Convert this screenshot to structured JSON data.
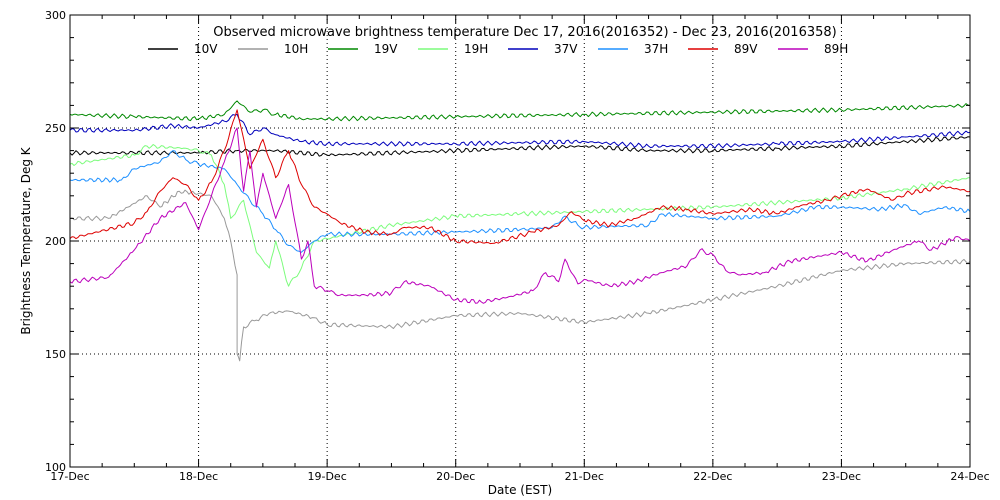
{
  "chart_data": {
    "type": "line",
    "title": "Observed microwave brightness temperature Dec 17, 2016(2016352) - Dec 23, 2016(2016358)",
    "xlabel": "Date (EST)",
    "ylabel": "Brightness Temperature, Deg K",
    "x_tick_labels": [
      "17-Dec",
      "18-Dec",
      "19-Dec",
      "20-Dec",
      "21-Dec",
      "22-Dec",
      "23-Dec",
      "24-Dec"
    ],
    "y_tick_labels": [
      "100",
      "150",
      "200",
      "250",
      "300"
    ],
    "xlim": [
      0,
      7
    ],
    "ylim": [
      100,
      300
    ],
    "x_unit_note": "days after 17-Dec 00:00 EST",
    "grid": "dotted at major ticks",
    "legend_position": "top",
    "series": [
      {
        "name": "10V",
        "color": "#000000",
        "points": [
          [
            0,
            239
          ],
          [
            0.5,
            239
          ],
          [
            1,
            239
          ],
          [
            1.3,
            240
          ],
          [
            1.6,
            240
          ],
          [
            2,
            238
          ],
          [
            3,
            240
          ],
          [
            4,
            242
          ],
          [
            4.5,
            240
          ],
          [
            5,
            240
          ],
          [
            5.5,
            241
          ],
          [
            6,
            242
          ],
          [
            6.5,
            244
          ],
          [
            7,
            246
          ]
        ]
      },
      {
        "name": "10H",
        "color": "#999999",
        "points": [
          [
            0,
            210
          ],
          [
            0.3,
            210
          ],
          [
            0.45,
            215
          ],
          [
            0.6,
            220
          ],
          [
            0.7,
            215
          ],
          [
            0.85,
            222
          ],
          [
            1,
            221
          ],
          [
            1.1,
            220
          ],
          [
            1.2,
            210
          ],
          [
            1.25,
            200
          ],
          [
            1.3,
            185
          ],
          [
            1.3,
            150
          ],
          [
            1.32,
            147
          ],
          [
            1.35,
            162
          ],
          [
            1.45,
            165
          ],
          [
            1.55,
            168
          ],
          [
            1.7,
            169
          ],
          [
            1.9,
            166
          ],
          [
            2,
            163
          ],
          [
            2.5,
            162
          ],
          [
            3,
            167
          ],
          [
            3.5,
            168
          ],
          [
            4,
            164
          ],
          [
            4.5,
            168
          ],
          [
            5,
            174
          ],
          [
            5.5,
            180
          ],
          [
            6,
            187
          ],
          [
            6.5,
            190
          ],
          [
            7,
            191
          ]
        ]
      },
      {
        "name": "19V",
        "color": "#008800",
        "points": [
          [
            0,
            256
          ],
          [
            0.5,
            255
          ],
          [
            1,
            254
          ],
          [
            1.2,
            256
          ],
          [
            1.3,
            262
          ],
          [
            1.4,
            257
          ],
          [
            1.5,
            258
          ],
          [
            1.6,
            256
          ],
          [
            1.8,
            254
          ],
          [
            2,
            254
          ],
          [
            3,
            255
          ],
          [
            4,
            256
          ],
          [
            5,
            257
          ],
          [
            6,
            258
          ],
          [
            7,
            260
          ]
        ]
      },
      {
        "name": "19H",
        "color": "#7CFC7C",
        "points": [
          [
            0,
            234
          ],
          [
            0.5,
            238
          ],
          [
            0.6,
            242
          ],
          [
            0.9,
            241
          ],
          [
            1,
            240
          ],
          [
            1.1,
            238
          ],
          [
            1.2,
            225
          ],
          [
            1.25,
            210
          ],
          [
            1.35,
            218
          ],
          [
            1.45,
            195
          ],
          [
            1.55,
            188
          ],
          [
            1.6,
            200
          ],
          [
            1.7,
            180
          ],
          [
            1.8,
            188
          ],
          [
            1.9,
            200
          ],
          [
            2,
            201
          ],
          [
            2.5,
            207
          ],
          [
            3,
            211
          ],
          [
            3.5,
            212
          ],
          [
            4,
            213
          ],
          [
            4.5,
            214
          ],
          [
            5,
            215
          ],
          [
            5.5,
            217
          ],
          [
            6,
            219
          ],
          [
            6.5,
            223
          ],
          [
            7,
            228
          ]
        ]
      },
      {
        "name": "37V",
        "color": "#0000BB",
        "points": [
          [
            0,
            249
          ],
          [
            0.5,
            249
          ],
          [
            0.8,
            251
          ],
          [
            1,
            250
          ],
          [
            1.2,
            253
          ],
          [
            1.3,
            256
          ],
          [
            1.4,
            247
          ],
          [
            1.5,
            250
          ],
          [
            1.6,
            247
          ],
          [
            1.8,
            244
          ],
          [
            2,
            243
          ],
          [
            3,
            243
          ],
          [
            4,
            244
          ],
          [
            4.5,
            242
          ],
          [
            5,
            242
          ],
          [
            5.5,
            243
          ],
          [
            6,
            244
          ],
          [
            6.5,
            246
          ],
          [
            7,
            248
          ]
        ]
      },
      {
        "name": "37H",
        "color": "#1E90FF",
        "points": [
          [
            0,
            227
          ],
          [
            0.4,
            227
          ],
          [
            0.5,
            232
          ],
          [
            0.7,
            235
          ],
          [
            0.8,
            240
          ],
          [
            0.9,
            236
          ],
          [
            1,
            234
          ],
          [
            1.2,
            232
          ],
          [
            1.3,
            225
          ],
          [
            1.4,
            218
          ],
          [
            1.5,
            212
          ],
          [
            1.6,
            205
          ],
          [
            1.7,
            198
          ],
          [
            1.8,
            195
          ],
          [
            1.9,
            200
          ],
          [
            2,
            203
          ],
          [
            2.5,
            203
          ],
          [
            3,
            204
          ],
          [
            3.5,
            205
          ],
          [
            3.75,
            206
          ],
          [
            3.85,
            211
          ],
          [
            3.95,
            207
          ],
          [
            4,
            206
          ],
          [
            4.5,
            207
          ],
          [
            4.6,
            212
          ],
          [
            5,
            210
          ],
          [
            5.5,
            211
          ],
          [
            5.8,
            215
          ],
          [
            6,
            215
          ],
          [
            6.3,
            214
          ],
          [
            6.5,
            216
          ],
          [
            6.6,
            212
          ],
          [
            6.8,
            215
          ],
          [
            7,
            213
          ]
        ]
      },
      {
        "name": "89V",
        "color": "#DD0000",
        "points": [
          [
            0,
            201
          ],
          [
            0.5,
            208
          ],
          [
            0.6,
            213
          ],
          [
            0.7,
            222
          ],
          [
            0.8,
            228
          ],
          [
            0.9,
            225
          ],
          [
            1,
            218
          ],
          [
            1.1,
            226
          ],
          [
            1.2,
            240
          ],
          [
            1.3,
            258
          ],
          [
            1.4,
            232
          ],
          [
            1.5,
            245
          ],
          [
            1.6,
            228
          ],
          [
            1.7,
            240
          ],
          [
            1.8,
            225
          ],
          [
            1.9,
            215
          ],
          [
            2,
            212
          ],
          [
            2.1,
            208
          ],
          [
            2.3,
            204
          ],
          [
            2.5,
            203
          ],
          [
            2.6,
            206
          ],
          [
            2.8,
            206
          ],
          [
            3,
            200
          ],
          [
            3.3,
            199
          ],
          [
            3.6,
            204
          ],
          [
            3.8,
            207
          ],
          [
            3.9,
            213
          ],
          [
            4,
            209
          ],
          [
            4.2,
            207
          ],
          [
            4.4,
            210
          ],
          [
            4.6,
            215
          ],
          [
            4.8,
            214
          ],
          [
            5,
            212
          ],
          [
            5.3,
            214
          ],
          [
            5.5,
            212
          ],
          [
            5.7,
            216
          ],
          [
            5.9,
            218
          ],
          [
            6,
            220
          ],
          [
            6.2,
            223
          ],
          [
            6.4,
            218
          ],
          [
            6.5,
            221
          ],
          [
            6.8,
            224
          ],
          [
            7,
            222
          ]
        ]
      },
      {
        "name": "89H",
        "color": "#BB00BB",
        "points": [
          [
            0,
            182
          ],
          [
            0.3,
            184
          ],
          [
            0.5,
            196
          ],
          [
            0.7,
            210
          ],
          [
            0.9,
            217
          ],
          [
            1,
            205
          ],
          [
            1.1,
            220
          ],
          [
            1.2,
            235
          ],
          [
            1.3,
            250
          ],
          [
            1.35,
            222
          ],
          [
            1.4,
            240
          ],
          [
            1.45,
            215
          ],
          [
            1.5,
            230
          ],
          [
            1.6,
            210
          ],
          [
            1.7,
            225
          ],
          [
            1.8,
            192
          ],
          [
            1.85,
            200
          ],
          [
            1.9,
            180
          ],
          [
            2,
            178
          ],
          [
            2.1,
            176
          ],
          [
            2.3,
            176
          ],
          [
            2.5,
            177
          ],
          [
            2.6,
            182
          ],
          [
            2.8,
            180
          ],
          [
            3,
            174
          ],
          [
            3.2,
            173
          ],
          [
            3.4,
            175
          ],
          [
            3.6,
            178
          ],
          [
            3.7,
            186
          ],
          [
            3.8,
            182
          ],
          [
            3.85,
            192
          ],
          [
            3.95,
            181
          ],
          [
            4,
            183
          ],
          [
            4.2,
            180
          ],
          [
            4.4,
            182
          ],
          [
            4.6,
            186
          ],
          [
            4.8,
            189
          ],
          [
            4.9,
            196
          ],
          [
            5,
            194
          ],
          [
            5.1,
            187
          ],
          [
            5.2,
            185
          ],
          [
            5.4,
            186
          ],
          [
            5.6,
            191
          ],
          [
            5.8,
            193
          ],
          [
            6,
            195
          ],
          [
            6.2,
            191
          ],
          [
            6.4,
            196
          ],
          [
            6.6,
            200
          ],
          [
            6.7,
            196
          ],
          [
            6.9,
            202
          ],
          [
            7,
            200
          ]
        ]
      }
    ]
  }
}
